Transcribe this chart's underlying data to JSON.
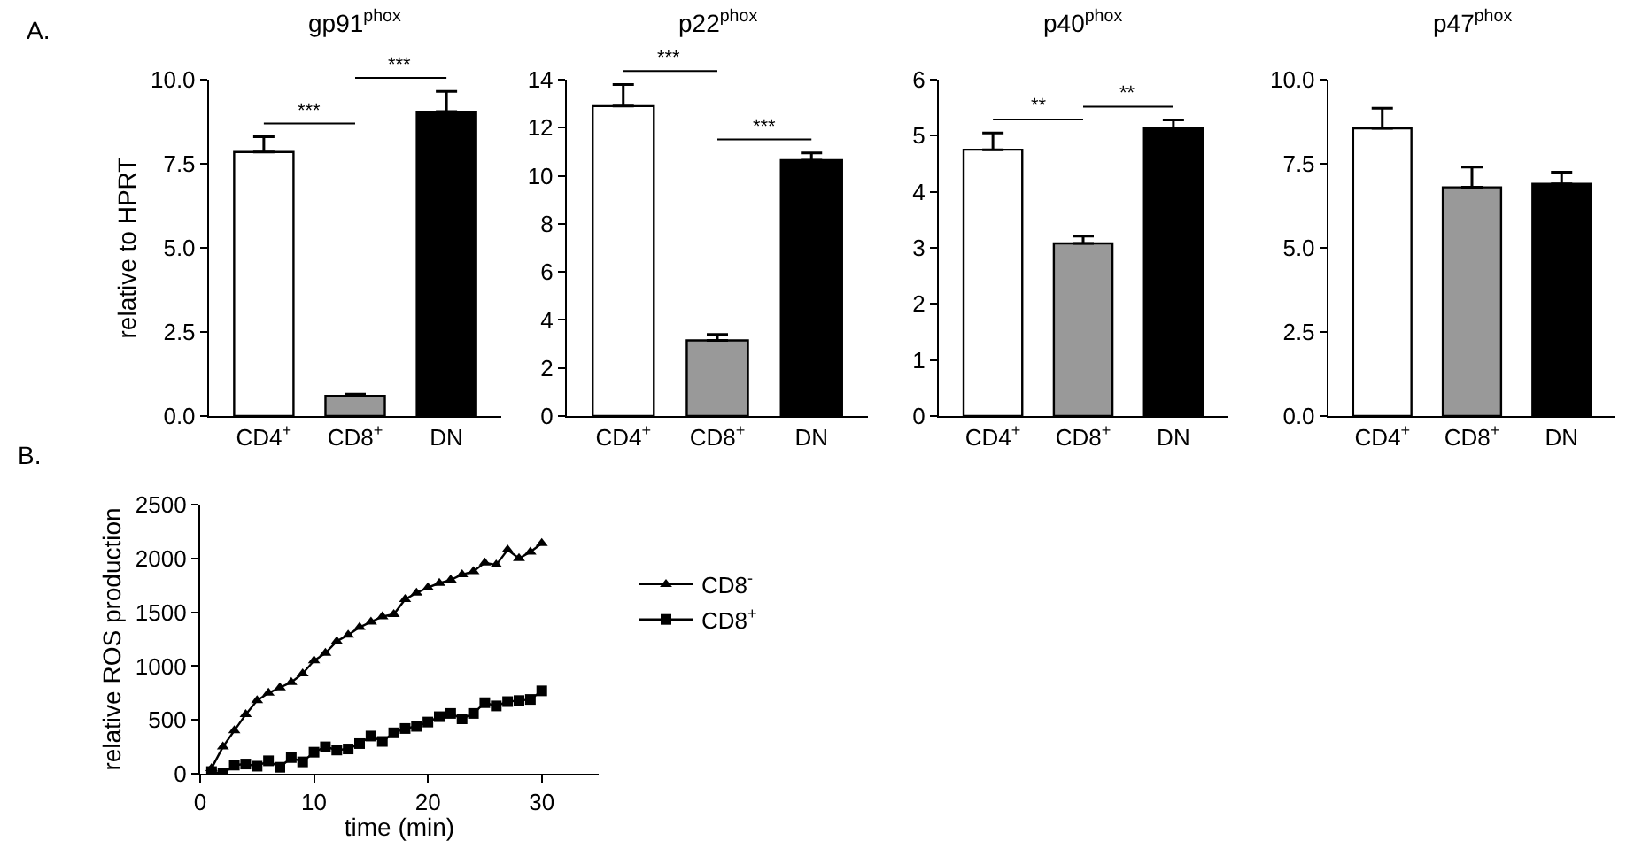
{
  "chart_data": [
    {
      "type": "bar",
      "title": "gp91$^{phox}$",
      "ylabel": "relative to HPRT",
      "categories": [
        "CD4$^{+}$",
        "CD8$^{+}$",
        "DN"
      ],
      "values": [
        7.85,
        0.6,
        9.05
      ],
      "errors": [
        [
          7.85,
          8.3
        ],
        [
          0.6,
          0.65
        ],
        [
          9.05,
          9.65
        ]
      ],
      "colors": [
        "#ffffff",
        "#999999",
        "#000000"
      ],
      "ylim": [
        0,
        10
      ],
      "yticks": [
        {
          "value": 0,
          "label": "0.0"
        },
        {
          "value": 2.5,
          "label": "2.5"
        },
        {
          "value": 5,
          "label": "5.0"
        },
        {
          "value": 7.5,
          "label": "7.5"
        },
        {
          "value": 10,
          "label": "10.0"
        }
      ],
      "annotations": [
        "A.",
        "***",
        "***"
      ],
      "grid": false,
      "legend": false
    },
    {
      "type": "bar",
      "title": "p22$^{phox}$",
      "categories": [
        "CD4$^{+}$",
        "CD8$^{+}$",
        "DN"
      ],
      "values": [
        12.9,
        3.15,
        10.65
      ],
      "errors": [
        [
          12.9,
          13.8
        ],
        [
          3.15,
          3.4
        ],
        [
          10.65,
          10.95
        ]
      ],
      "colors": [
        "#ffffff",
        "#999999",
        "#000000"
      ],
      "ylim": [
        0,
        14
      ],
      "yticks": [
        0,
        2,
        4,
        6,
        8,
        10,
        12,
        14
      ],
      "annotations": [
        "***",
        "***"
      ],
      "grid": false,
      "legend": false
    },
    {
      "type": "bar",
      "title": "p40$^{phox}$",
      "categories": [
        "CD4$^{+}$",
        "CD8$^{+}$",
        "DN"
      ],
      "values": [
        4.75,
        3.08,
        5.13
      ],
      "errors": [
        [
          4.75,
          5.05
        ],
        [
          3.08,
          3.21
        ],
        [
          5.13,
          5.28
        ]
      ],
      "colors": [
        "#ffffff",
        "#999999",
        "#000000"
      ],
      "ylim": [
        0,
        6
      ],
      "yticks": [
        0,
        1,
        2,
        3,
        4,
        5,
        6
      ],
      "annotations": [
        "**",
        "**"
      ],
      "grid": false,
      "legend": false
    },
    {
      "type": "bar",
      "title": "p47$^{phox}$",
      "categories": [
        "CD4$^{+}$",
        "CD8$^{+}$",
        "DN"
      ],
      "values": [
        8.55,
        6.8,
        6.9
      ],
      "errors": [
        [
          8.55,
          9.15
        ],
        [
          6.8,
          7.4
        ],
        [
          6.9,
          7.25
        ]
      ],
      "colors": [
        "#ffffff",
        "#999999",
        "#000000"
      ],
      "ylim": [
        0,
        10
      ],
      "yticks": [
        {
          "value": 0,
          "label": "0.0"
        },
        {
          "value": 2.5,
          "label": "2.5"
        },
        {
          "value": 5,
          "label": "5.0"
        },
        {
          "value": 7.5,
          "label": "7.5"
        },
        {
          "value": 10,
          "label": "10.0"
        }
      ],
      "grid": false,
      "legend": false
    },
    {
      "type": "line",
      "xlabel": "time (min)",
      "ylabel": "relative ROS production",
      "annotations": [
        "B."
      ],
      "xlim": [
        0,
        35
      ],
      "xticks": [
        0,
        10,
        20,
        30
      ],
      "ylim": [
        0,
        2500
      ],
      "yticks": [
        0,
        500,
        1000,
        1500,
        2000,
        2500
      ],
      "grid": false,
      "legend": "right",
      "line_style": "solid",
      "series": [
        {
          "name": "CD8$^{-}$",
          "color": "#000000",
          "marker": "triangle",
          "x": [
            1,
            2,
            3,
            4,
            5,
            6,
            7,
            8,
            9,
            10,
            11,
            12,
            13,
            14,
            15,
            16,
            17,
            18,
            19,
            20,
            21,
            22,
            23,
            24,
            25,
            26,
            27,
            28,
            29,
            30
          ],
          "values": [
            50,
            250,
            400,
            550,
            680,
            750,
            800,
            850,
            930,
            1050,
            1120,
            1230,
            1290,
            1360,
            1410,
            1460,
            1480,
            1620,
            1680,
            1730,
            1770,
            1800,
            1850,
            1880,
            1960,
            1940,
            2080,
            2000,
            2060,
            2140
          ]
        },
        {
          "name": "CD8$^{+}$",
          "color": "#000000",
          "marker": "square",
          "x": [
            1,
            2,
            3,
            4,
            5,
            6,
            7,
            8,
            9,
            10,
            11,
            12,
            13,
            14,
            15,
            16,
            17,
            18,
            19,
            20,
            21,
            22,
            23,
            24,
            25,
            26,
            27,
            28,
            29,
            30
          ],
          "values": [
            20,
            0,
            80,
            90,
            70,
            120,
            60,
            150,
            110,
            200,
            250,
            220,
            230,
            280,
            350,
            300,
            380,
            420,
            440,
            480,
            530,
            560,
            510,
            560,
            660,
            630,
            670,
            680,
            690,
            770
          ]
        }
      ]
    }
  ]
}
